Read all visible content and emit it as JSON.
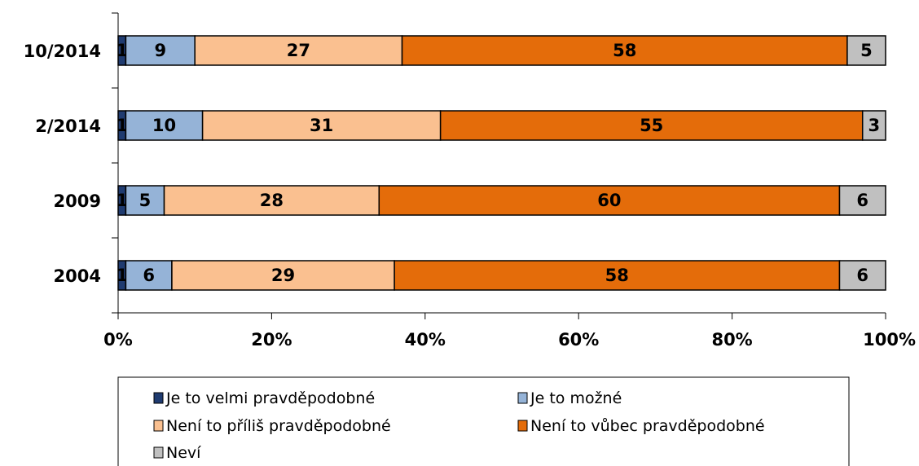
{
  "chart_data": {
    "type": "bar",
    "orientation": "horizontal",
    "stacked": "percent",
    "categories": [
      "10/2014",
      "2/2014",
      "2009",
      "2004"
    ],
    "series": [
      {
        "name": "Je to velmi pravděpodobné",
        "color": "#1F3B70",
        "values": [
          1,
          1,
          1,
          1
        ]
      },
      {
        "name": "Je to možné",
        "color": "#95B3D7",
        "values": [
          9,
          10,
          5,
          6
        ]
      },
      {
        "name": "Není to příliš pravděpodobné",
        "color": "#FAC090",
        "values": [
          27,
          31,
          28,
          29
        ]
      },
      {
        "name": "Není to vůbec pravděpodobné",
        "color": "#E46C0A",
        "values": [
          58,
          55,
          60,
          58
        ]
      },
      {
        "name": "Neví",
        "color": "#C0C0C0",
        "values": [
          5,
          3,
          6,
          6
        ]
      }
    ],
    "xlim": [
      0,
      100
    ],
    "xticks": [
      "0%",
      "20%",
      "40%",
      "60%",
      "80%",
      "100%"
    ],
    "grid": false,
    "legend": "bottom"
  }
}
